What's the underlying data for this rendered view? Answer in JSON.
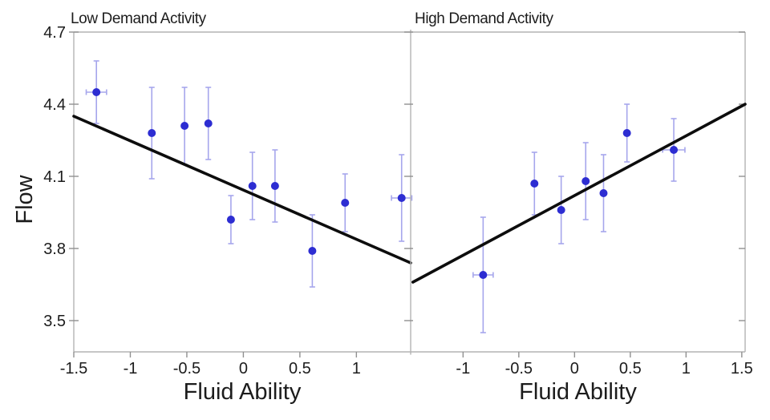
{
  "figure": {
    "colors": {
      "background": "#ffffff",
      "point": "#2d2dd2",
      "error_bar": "#a6a6ec",
      "trend_line": "#0d0d0d",
      "axis": "#b3b3b3",
      "tick": "#909090",
      "text": "#1c1c1c"
    }
  },
  "chart_data": [
    {
      "type": "scatter",
      "title": "Low Demand Activity",
      "xlabel": "Fluid Ability",
      "ylabel": "Flow",
      "xlim": [
        -1.5,
        1.48
      ],
      "ylim": [
        3.37,
        4.7
      ],
      "grid": false,
      "xticks": {
        "values": [
          -1.5,
          -1,
          -0.5,
          0,
          0.5,
          1
        ],
        "labels": [
          "-1.5",
          "-1",
          "-0.5",
          "0",
          "0.5",
          "1"
        ]
      },
      "yticks": {
        "values": [
          3.5,
          3.8,
          4.1,
          4.4,
          4.7
        ],
        "labels": [
          "3.5",
          "3.8",
          "4.1",
          "4.4",
          "4.7"
        ]
      },
      "points": [
        {
          "x": -1.3,
          "y": 4.45,
          "yerr": 0.13,
          "xerr": 0.09
        },
        {
          "x": -0.81,
          "y": 4.28,
          "yerr": 0.19
        },
        {
          "x": -0.52,
          "y": 4.31,
          "yerr": 0.16
        },
        {
          "x": -0.31,
          "y": 4.32,
          "yerr": 0.15
        },
        {
          "x": -0.11,
          "y": 3.92,
          "yerr": 0.1
        },
        {
          "x": 0.08,
          "y": 4.06,
          "yerr": 0.14
        },
        {
          "x": 0.28,
          "y": 4.06,
          "yerr": 0.15
        },
        {
          "x": 0.61,
          "y": 3.79,
          "yerr": 0.15
        },
        {
          "x": 0.9,
          "y": 3.99,
          "yerr": 0.12
        },
        {
          "x": 1.4,
          "y": 4.01,
          "yerr": 0.18,
          "xerr": 0.09
        }
      ],
      "trend_line": {
        "x1": -1.5,
        "y1": 4.35,
        "x2": 1.48,
        "y2": 3.74
      }
    },
    {
      "type": "scatter",
      "title": "High Demand Activity",
      "xlabel": "Fluid Ability",
      "ylabel": "Flow",
      "xlim": [
        -1.47,
        1.53
      ],
      "ylim": [
        3.37,
        4.7
      ],
      "grid": false,
      "xticks": {
        "values": [
          -1,
          -0.5,
          0,
          0.5,
          1,
          1.5
        ],
        "labels": [
          "-1",
          "-0.5",
          "0",
          "0.5",
          "1",
          "1.5"
        ]
      },
      "yticks": {
        "values": [
          3.5,
          3.8,
          4.1,
          4.4,
          4.7
        ],
        "labels": [
          "3.5",
          "3.8",
          "4.1",
          "4.4",
          "4.7"
        ]
      },
      "points": [
        {
          "x": -0.82,
          "y": 3.69,
          "yerr": 0.24,
          "xerr": 0.09
        },
        {
          "x": -0.36,
          "y": 4.07,
          "yerr": 0.13
        },
        {
          "x": -0.12,
          "y": 3.96,
          "yerr": 0.14
        },
        {
          "x": 0.1,
          "y": 4.08,
          "yerr": 0.16
        },
        {
          "x": 0.26,
          "y": 4.03,
          "yerr": 0.16
        },
        {
          "x": 0.47,
          "y": 4.28,
          "yerr": 0.12
        },
        {
          "x": 0.89,
          "y": 4.21,
          "yerr": 0.13,
          "xerr": 0.1
        }
      ],
      "trend_line": {
        "x1": -1.45,
        "y1": 3.66,
        "x2": 1.53,
        "y2": 4.4
      }
    }
  ]
}
